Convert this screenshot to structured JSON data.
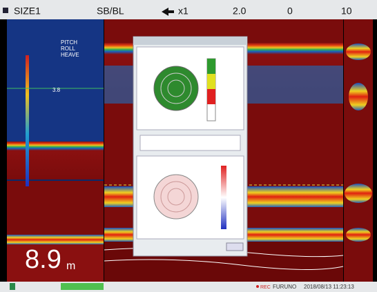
{
  "header": {
    "size": "SIZE1",
    "mode": "SB/BL",
    "zoom": "x1",
    "range": "2.0",
    "shift": "0",
    "gain": "10"
  },
  "left_panel": {
    "legend": [
      "PITCH",
      "ROLL",
      "HEAVE"
    ],
    "marker": "3.8",
    "depth": "8.9",
    "depth_unit": "m"
  },
  "status": {
    "rec": "REC",
    "brand": "FURUNO",
    "timestamp": "2018/08/13 11:23:13"
  }
}
